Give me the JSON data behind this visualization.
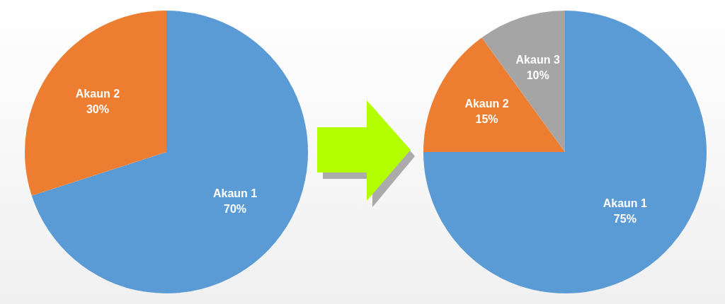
{
  "chart_data": [
    {
      "type": "pie",
      "categories": [
        "Akaun 1",
        "Akaun 2"
      ],
      "values": [
        70,
        30
      ],
      "value_labels": [
        "70%",
        "30%"
      ],
      "colors": [
        "#5b9bd5",
        "#ed7d31"
      ],
      "legend": false
    },
    {
      "type": "pie",
      "categories": [
        "Akaun 1",
        "Akaun 2",
        "Akaun 3"
      ],
      "values": [
        75,
        15,
        10
      ],
      "value_labels": [
        "75%",
        "15%",
        "10%"
      ],
      "colors": [
        "#5b9bd5",
        "#ed7d31",
        "#a5a5a5"
      ],
      "legend": false
    }
  ]
}
